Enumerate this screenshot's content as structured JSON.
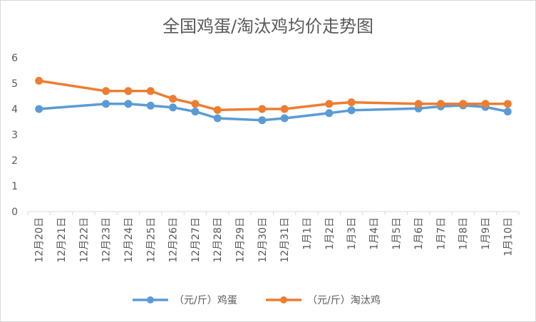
{
  "chart_data": {
    "type": "line",
    "title": "全国鸡蛋/淘汰鸡均价走势图",
    "categories": [
      "12月20日",
      "12月21日",
      "12月22日",
      "12月23日",
      "12月24日",
      "12月25日",
      "12月26日",
      "12月27日",
      "12月28日",
      "12月29日",
      "12月30日",
      "12月31日",
      "1月1日",
      "1月2日",
      "1月3日",
      "1月4日",
      "1月5日",
      "1月6日",
      "1月7日",
      "1月8日",
      "1月9日",
      "1月10日"
    ],
    "series": [
      {
        "name": "（元/斤）鸡蛋",
        "color": "#5b9bd5",
        "values": [
          4.0,
          null,
          null,
          4.2,
          4.2,
          4.13,
          4.06,
          3.9,
          3.64,
          null,
          3.56,
          3.64,
          null,
          3.84,
          3.95,
          null,
          null,
          4.02,
          4.1,
          4.14,
          4.08,
          3.9
        ]
      },
      {
        "name": "（元/斤）淘汰鸡",
        "color": "#ed7d31",
        "values": [
          5.1,
          null,
          null,
          4.7,
          4.7,
          4.7,
          4.4,
          4.2,
          3.96,
          null,
          4.0,
          4.0,
          null,
          4.2,
          4.26,
          null,
          null,
          4.2,
          4.2,
          4.2,
          4.2,
          4.2
        ]
      }
    ],
    "ylim": [
      0,
      6
    ],
    "yticks": [
      0,
      1,
      2,
      3,
      4,
      5,
      6
    ],
    "grid": false,
    "legend": "bottom"
  }
}
